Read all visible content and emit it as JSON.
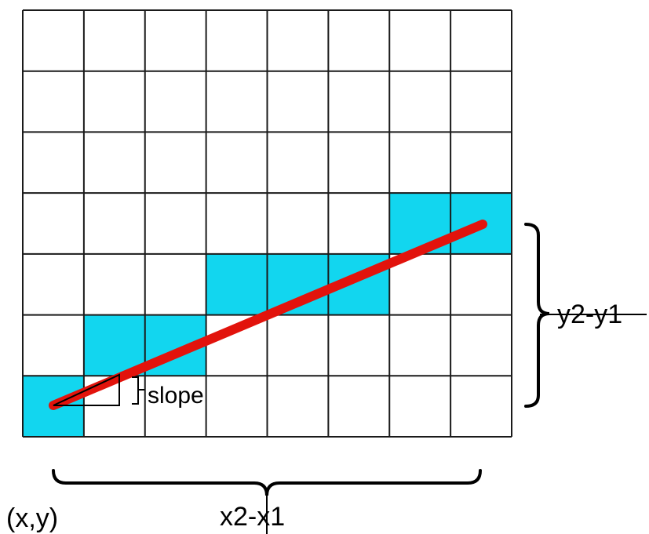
{
  "diagram": {
    "grid": {
      "columns": 8,
      "rows": 7,
      "filled_color": "#12d6ef",
      "line_color": "#1a1a1a",
      "filled_cells": [
        {
          "col": 0,
          "row": 6
        },
        {
          "col": 1,
          "row": 5
        },
        {
          "col": 2,
          "row": 5
        },
        {
          "col": 3,
          "row": 4
        },
        {
          "col": 4,
          "row": 4
        },
        {
          "col": 5,
          "row": 4
        },
        {
          "col": 6,
          "row": 3
        },
        {
          "col": 7,
          "row": 3
        }
      ]
    },
    "line": {
      "color": "#e2130c"
    },
    "labels": {
      "slope": "slope",
      "dy": "y2-y1",
      "dx": "x2-x1",
      "origin": "(x,y)"
    }
  }
}
